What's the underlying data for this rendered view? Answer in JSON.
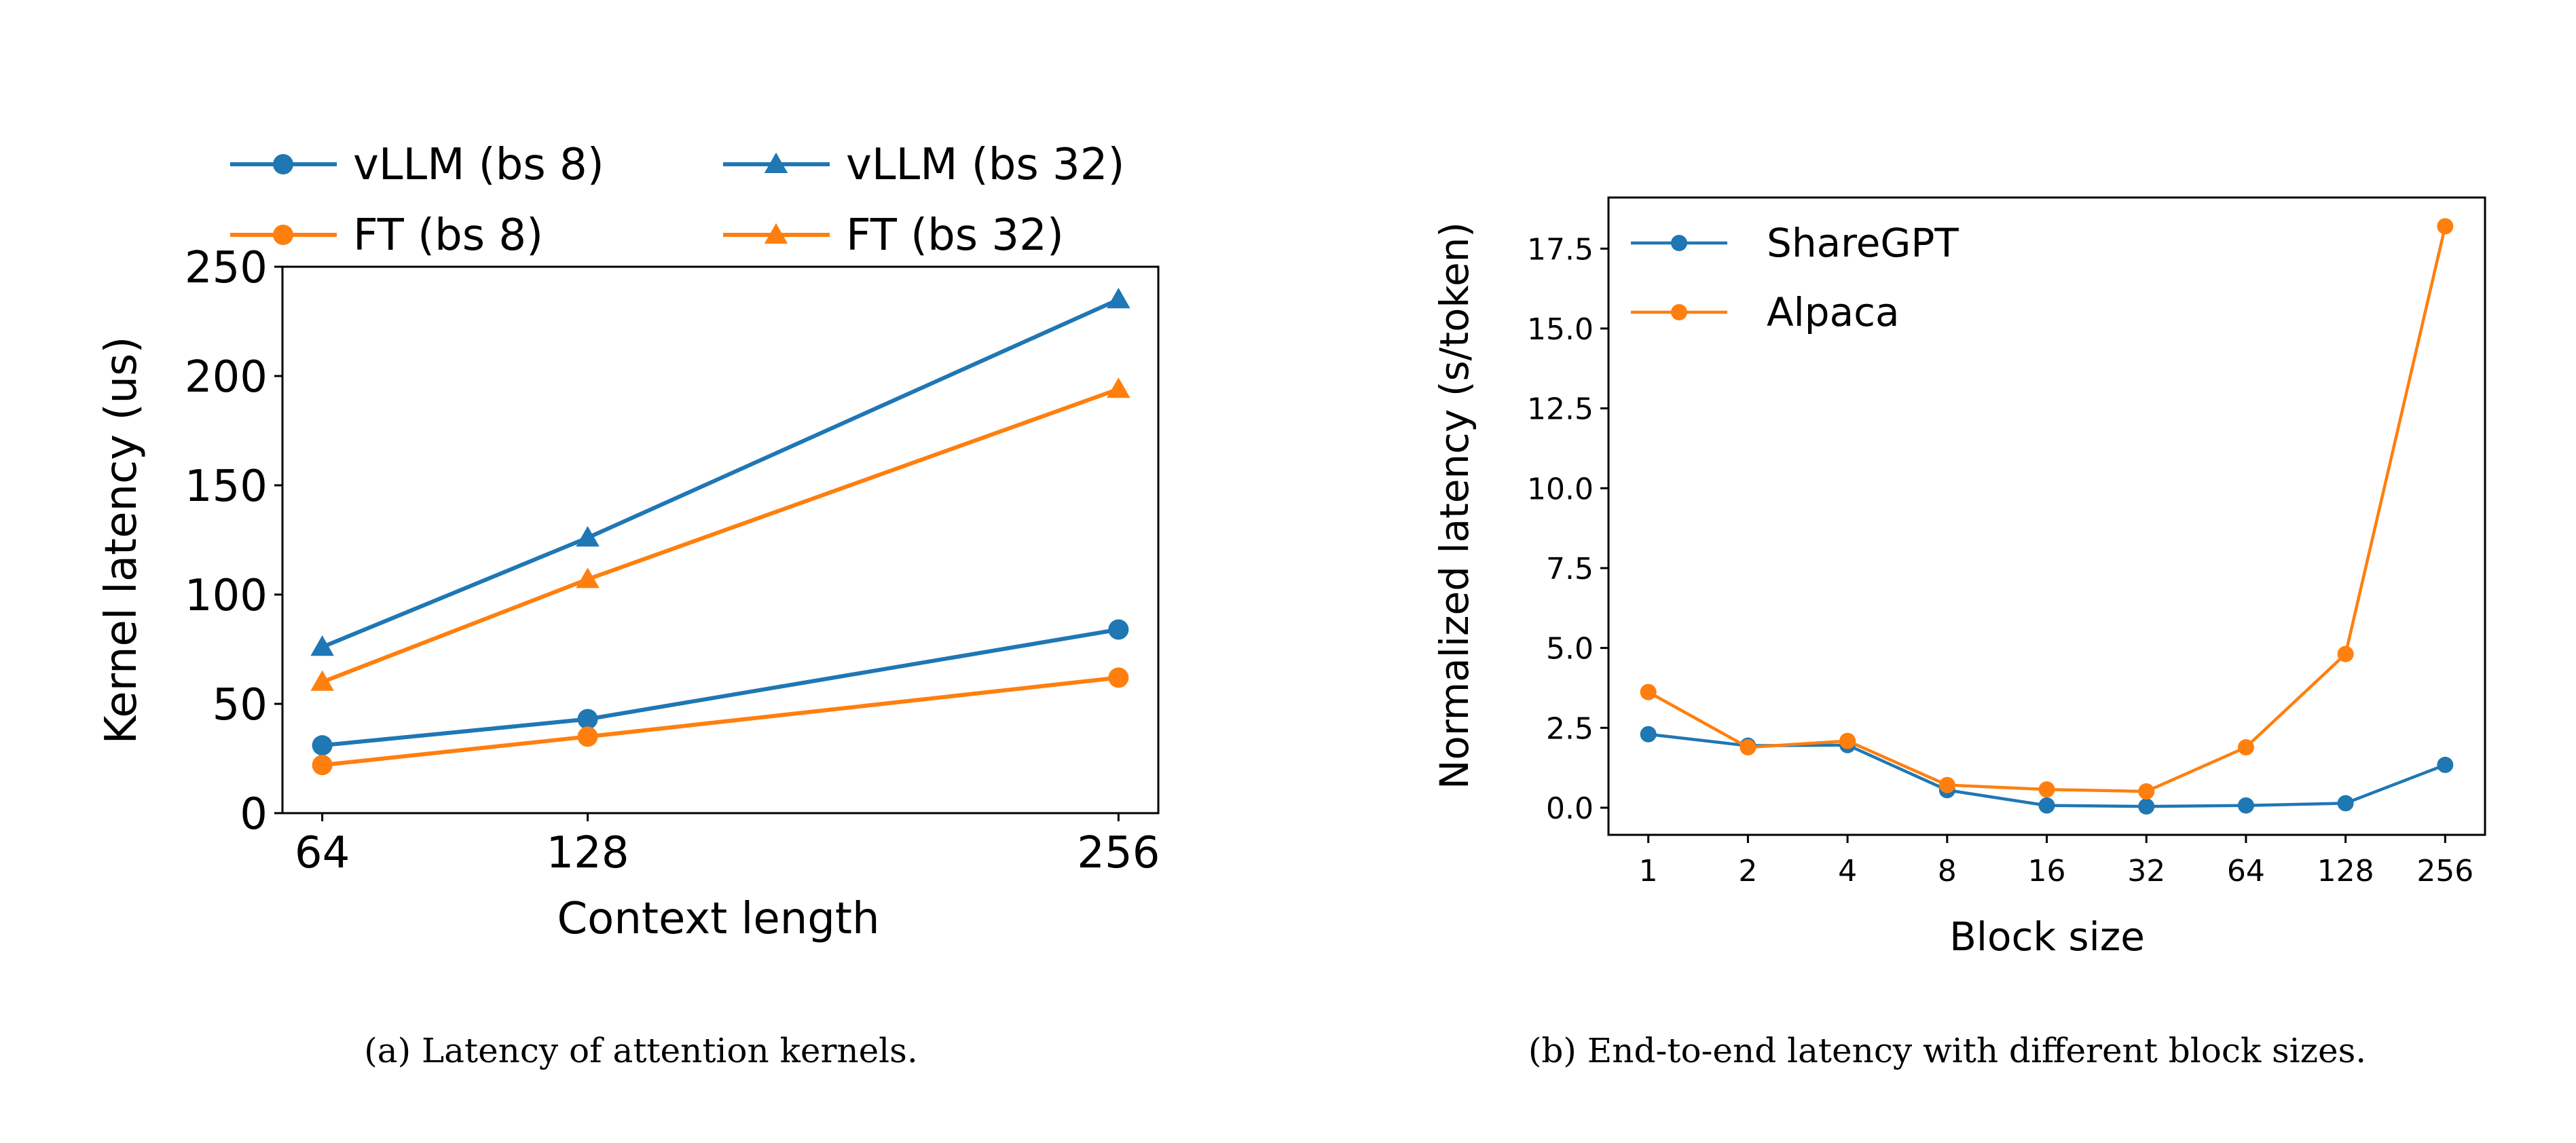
{
  "chart_data": [
    {
      "type": "line",
      "xlabel": "Context length",
      "ylabel": "Kernel latency (us)",
      "caption": "(a) Latency of attention kernels.",
      "x": [
        64,
        128,
        256
      ],
      "xticks": [
        "64",
        "128",
        "256"
      ],
      "xlim": [
        54.4,
        265.6
      ],
      "ylim": [
        0,
        250
      ],
      "yticks": [
        "0",
        "50",
        "100",
        "150",
        "200",
        "250"
      ],
      "grid": false,
      "legend_position": "top (above axes), 2 columns",
      "series": [
        {
          "name": "vLLM (bs 8)",
          "marker": "circle",
          "color": "#1f77b4",
          "values": [
            31,
            43,
            84
          ]
        },
        {
          "name": "FT (bs 8)",
          "marker": "circle",
          "color": "#ff7f0e",
          "values": [
            22,
            35,
            62
          ]
        },
        {
          "name": "vLLM (bs 32)",
          "marker": "triangle",
          "color": "#1f77b4",
          "values": [
            76,
            126,
            235
          ]
        },
        {
          "name": "FT (bs 32)",
          "marker": "triangle",
          "color": "#ff7f0e",
          "values": [
            60,
            107,
            194
          ]
        }
      ]
    },
    {
      "type": "line",
      "xlabel": "Block size",
      "ylabel": "Normalized latency (s/token)",
      "caption": "(b) End-to-end latency with different block sizes.",
      "categories": [
        "1",
        "2",
        "4",
        "8",
        "16",
        "32",
        "64",
        "128",
        "256"
      ],
      "ylim": [
        -0.85,
        19.1
      ],
      "yticks": [
        "0.0",
        "2.5",
        "5.0",
        "7.5",
        "10.0",
        "12.5",
        "15.0",
        "17.5"
      ],
      "grid": false,
      "legend_position": "upper left",
      "series": [
        {
          "name": "ShareGPT",
          "marker": "circle",
          "color": "#1f77b4",
          "values": [
            2.3,
            1.94,
            1.96,
            0.55,
            0.07,
            0.04,
            0.07,
            0.14,
            1.34
          ]
        },
        {
          "name": "Alpaca",
          "marker": "circle",
          "color": "#ff7f0e",
          "values": [
            3.62,
            1.89,
            2.09,
            0.71,
            0.57,
            0.51,
            1.89,
            4.81,
            18.2
          ]
        }
      ]
    }
  ]
}
